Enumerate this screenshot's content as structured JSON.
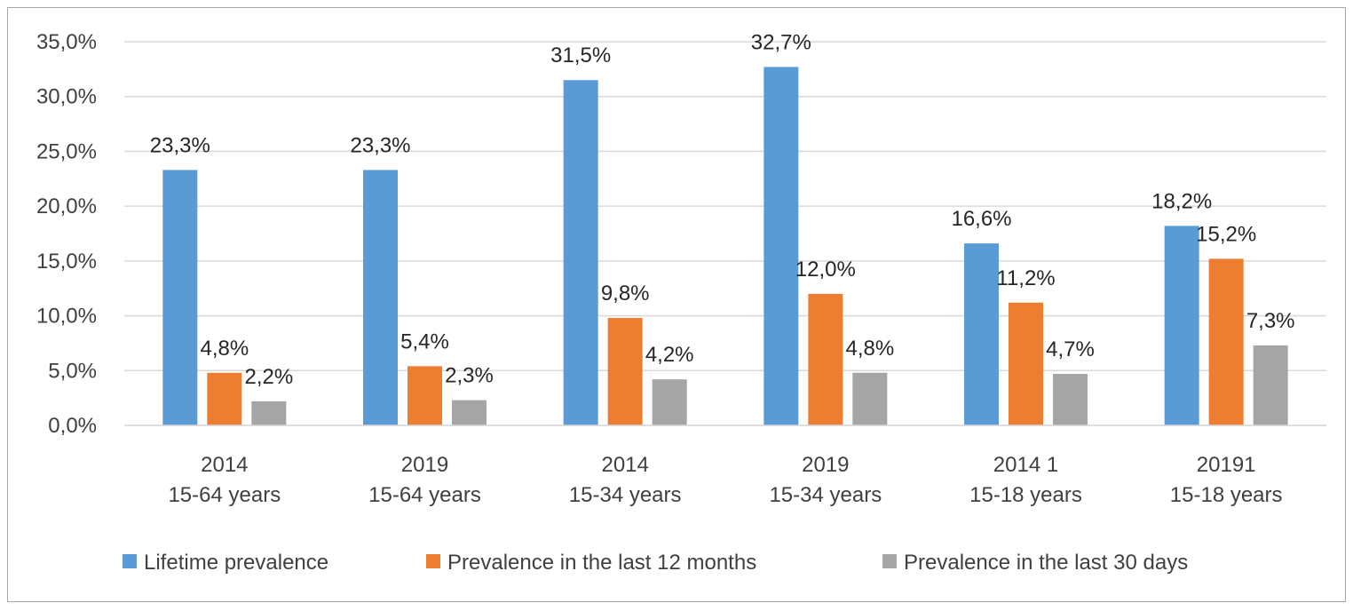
{
  "chart_data": {
    "type": "bar",
    "categories": [
      [
        "2014",
        "15-64 years"
      ],
      [
        "2019",
        "15-64 years"
      ],
      [
        "2014",
        "15-34 years"
      ],
      [
        "2019",
        "15-34 years"
      ],
      [
        "2014 1",
        "15-18 years"
      ],
      [
        "20191",
        "15-18 years"
      ]
    ],
    "series": [
      {
        "name": "Lifetime prevalence",
        "color": "#5b9bd5",
        "values": [
          23.3,
          23.3,
          31.5,
          32.7,
          16.6,
          18.2
        ],
        "labels": [
          "23,3%",
          "23,3%",
          "31,5%",
          "32,7%",
          "16,6%",
          "18,2%"
        ]
      },
      {
        "name": "Prevalence in the last 12 months",
        "color": "#ed7d31",
        "values": [
          4.8,
          5.4,
          9.8,
          12.0,
          11.2,
          15.2
        ],
        "labels": [
          "4,8%",
          "5,4%",
          "9,8%",
          "12,0%",
          "11,2%",
          "15,2%"
        ]
      },
      {
        "name": "Prevalence in the last 30 days",
        "color": "#a5a5a5",
        "values": [
          2.2,
          2.3,
          4.2,
          4.8,
          4.7,
          7.3
        ],
        "labels": [
          "2,2%",
          "2,3%",
          "4,2%",
          "4,8%",
          "4,7%",
          "7,3%"
        ]
      }
    ],
    "ylim": [
      0,
      35
    ],
    "yticks": [
      0,
      5,
      10,
      15,
      20,
      25,
      30,
      35
    ],
    "ytick_labels": [
      "0,0%",
      "5,0%",
      "10,0%",
      "15,0%",
      "20,0%",
      "25,0%",
      "30,0%",
      "35,0%"
    ],
    "grid": true,
    "legend_position": "bottom"
  }
}
